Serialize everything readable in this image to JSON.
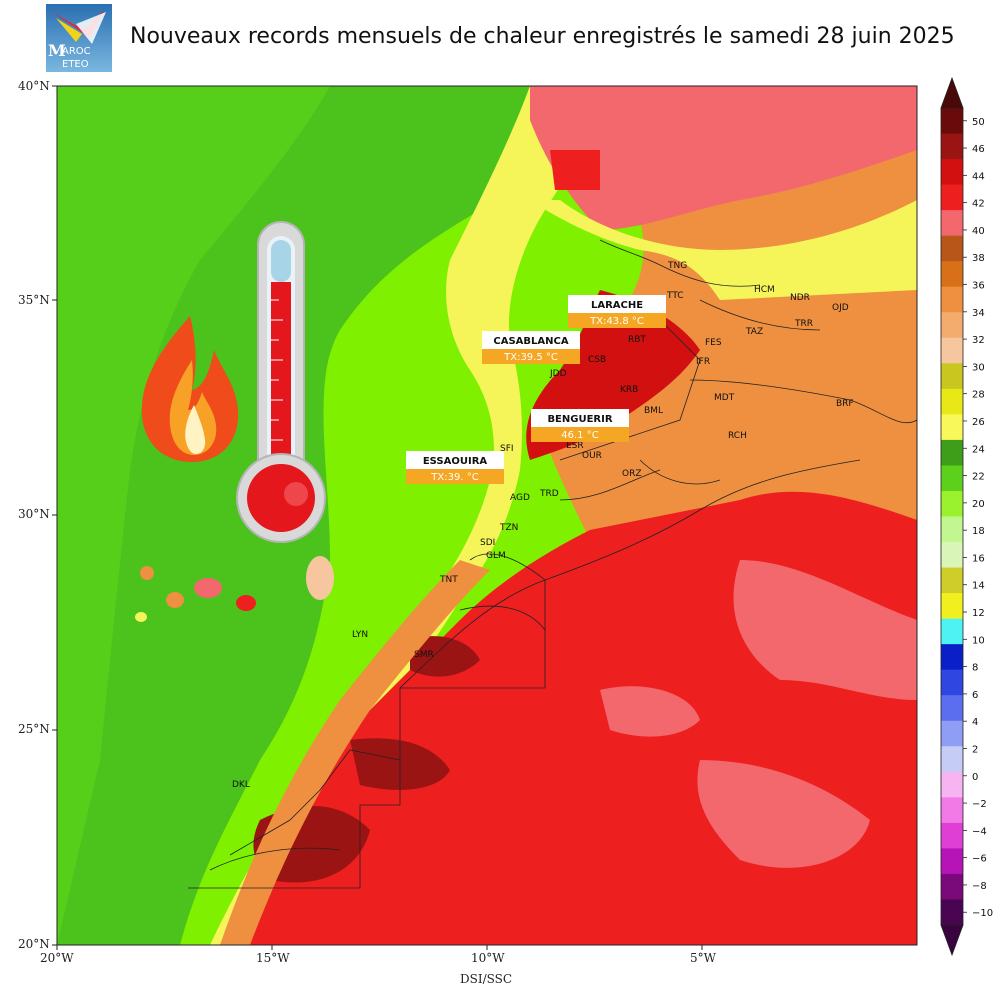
{
  "header": {
    "title": "Nouveaux records mensuels de chaleur enregistrés le samedi 28 juin 2025",
    "logo_line1": "AROC",
    "logo_line2": "ETEO",
    "logo_initial": "M"
  },
  "axes": {
    "x_ticks": [
      "20°W",
      "15°W",
      "10°W",
      "5°W"
    ],
    "y_ticks": [
      "40°N",
      "35°N",
      "30°N",
      "25°N",
      "20°N"
    ],
    "credit": "DSI/SSC"
  },
  "colorbar": {
    "labels": [
      "50",
      "46",
      "44",
      "42",
      "40",
      "38",
      "36",
      "34",
      "32",
      "30",
      "28",
      "26",
      "24",
      "22",
      "20",
      "18",
      "16",
      "14",
      "12",
      "10",
      "8",
      "6",
      "4",
      "2",
      "0",
      "−2",
      "−4",
      "−6",
      "−8",
      "−10"
    ],
    "colors": [
      "#6b0a0a",
      "#9b1414",
      "#d21010",
      "#ee1f1f",
      "#f2686d",
      "#b8561a",
      "#d77018",
      "#ee9040",
      "#f4ab6e",
      "#f6c79f",
      "#c8c61f",
      "#e9e817",
      "#f8f85a",
      "#3e9e1a",
      "#5cd01a",
      "#9af12e",
      "#c2f690",
      "#d9f5b8",
      "#cfcd2a",
      "#f1f01e",
      "#4ff2f2",
      "#0b1fc9",
      "#3046e0",
      "#5b6ef0",
      "#8f9ef4",
      "#c5ccf6",
      "#f6b4f0",
      "#f27ae6",
      "#e03fd6",
      "#b614b6",
      "#7a0a7a",
      "#4a0552"
    ]
  },
  "callouts": [
    {
      "name": "LARACHE",
      "value": "TX:43.8 °C"
    },
    {
      "name": "CASABLANCA",
      "value": "TX:39.5 °C"
    },
    {
      "name": "BENGUERIR",
      "value": "46.1 °C"
    },
    {
      "name": "ESSAOUIRA",
      "value": "TX:39. °C"
    }
  ],
  "station_codes": [
    "TNG",
    "TTC",
    "HCM",
    "NDR",
    "OJD",
    "TRR",
    "TAZ",
    "IFR",
    "FES",
    "RBT",
    "CSB",
    "JDD",
    "KRB",
    "BML",
    "MDT",
    "BRF",
    "SFI",
    "ESR",
    "OUR",
    "RCH",
    "ORZ",
    "AGD",
    "TRD",
    "TZN",
    "SDI",
    "GLM",
    "TNT",
    "LYN",
    "SMR",
    "DKL"
  ],
  "illustrations": [
    "flame-icon",
    "thermometer-icon"
  ]
}
